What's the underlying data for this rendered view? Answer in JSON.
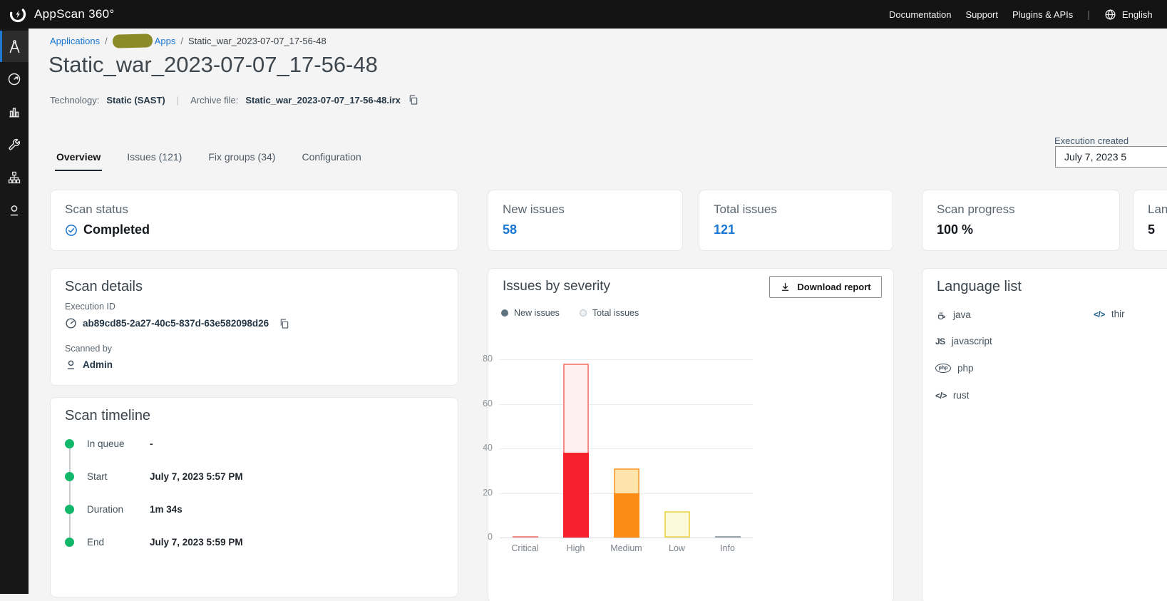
{
  "header": {
    "brand": "AppScan 360°",
    "nav": [
      "Documentation",
      "Support",
      "Plugins & APIs"
    ],
    "divider": "|",
    "language": "English"
  },
  "sidebar": {
    "items": [
      {
        "id": "applications",
        "icon": "compass-a-icon",
        "active": true
      },
      {
        "id": "scans",
        "icon": "gauge-icon",
        "active": false
      },
      {
        "id": "reports",
        "icon": "bar-chart-icon",
        "active": false
      },
      {
        "id": "tools",
        "icon": "wrench-icon",
        "active": false
      },
      {
        "id": "topology",
        "icon": "hierarchy-icon",
        "active": false
      },
      {
        "id": "user",
        "icon": "person-icon",
        "active": false
      }
    ]
  },
  "breadcrumb": {
    "root": "Applications",
    "separator": "/",
    "parent_suffix": "Apps",
    "current": "Static_war_2023-07-07_17-56-48"
  },
  "page": {
    "title": "Static_war_2023-07-07_17-56-48",
    "technology_label": "Technology:",
    "technology_value": "Static (SAST)",
    "divider": "|",
    "archive_label": "Archive file:",
    "archive_value": "Static_war_2023-07-07_17-56-48.irx"
  },
  "tabs": [
    {
      "label": "Overview",
      "active": true
    },
    {
      "label": "Issues (121)",
      "active": false
    },
    {
      "label": "Fix groups (34)",
      "active": false
    },
    {
      "label": "Configuration",
      "active": false
    }
  ],
  "execution_created": {
    "label": "Execution created",
    "value": "July 7, 2023 5"
  },
  "summary_cards": {
    "scan_status": {
      "label": "Scan status",
      "value": "Completed"
    },
    "new_issues": {
      "label": "New issues",
      "value": "58"
    },
    "total_issues": {
      "label": "Total issues",
      "value": "121"
    },
    "scan_progress": {
      "label": "Scan progress",
      "value": "100 %"
    },
    "languages": {
      "label": "Languages",
      "value": "5"
    }
  },
  "scan_details": {
    "title": "Scan details",
    "execution_id_label": "Execution ID",
    "execution_id": "ab89cd85-2a27-40c5-837d-63e582098d26",
    "scanned_by_label": "Scanned by",
    "scanned_by": "Admin"
  },
  "scan_timeline": {
    "title": "Scan timeline",
    "events": [
      {
        "label": "In queue",
        "value": "-"
      },
      {
        "label": "Start",
        "value": "July 7, 2023 5:57 PM"
      },
      {
        "label": "Duration",
        "value": "1m 34s"
      },
      {
        "label": "End",
        "value": "July 7, 2023 5:59 PM"
      }
    ]
  },
  "issues_by_severity": {
    "title": "Issues by severity",
    "download_button": "Download report",
    "legend": [
      {
        "label": "New issues",
        "dot": "#5f7281",
        "dot_border": "#5f7281"
      },
      {
        "label": "Total issues",
        "dot": "#edf1f3",
        "dot_border": "#b9c3cb"
      }
    ]
  },
  "chart_data": {
    "type": "bar",
    "title": "Issues by severity",
    "categories": [
      "Critical",
      "High",
      "Medium",
      "Low",
      "Info"
    ],
    "series": [
      {
        "name": "New issues",
        "values": [
          0,
          38,
          20,
          0,
          0
        ]
      },
      {
        "name": "Total issues",
        "values": [
          0,
          78,
          31,
          12,
          0
        ]
      }
    ],
    "ylim": [
      0,
      80
    ],
    "yticks": [
      0,
      20,
      40,
      60,
      80
    ],
    "grid": true,
    "legend_position": "top-left",
    "bar_style": "new-solid-overlaid-on-total-outline",
    "category_styles": [
      {
        "solid": "#f5222d",
        "light": "#fdeff0",
        "border": "#f58e88"
      },
      {
        "solid": "#f5222d",
        "light": "#fdeff0",
        "border": "#f58e88"
      },
      {
        "solid": "#fa8c16",
        "light": "#fee3ab",
        "border": "#fbab4a"
      },
      {
        "solid": "#fadb14",
        "light": "#fcf8da",
        "border": "#f0dd67"
      },
      {
        "solid": "#9da7ae",
        "light": "#eceef0",
        "border": "#9da7ae"
      }
    ]
  },
  "language_list": {
    "title": "Language list",
    "items": [
      {
        "icon": "java-icon",
        "label": "java"
      },
      {
        "icon": "js-icon",
        "label": "javascript"
      },
      {
        "icon": "php-icon",
        "label": "php"
      },
      {
        "icon": "code-icon",
        "label": "rust"
      }
    ],
    "right_items": [
      {
        "icon": "code-icon",
        "label": "thir"
      }
    ]
  },
  "icon_glyphs": {
    "js": "JS",
    "code": "</>",
    "php": "php"
  },
  "colors": {
    "accent_blue": "#1976d2",
    "success_green": "#12b76a",
    "header_bg": "#141414",
    "sidebar_active_bar": "#1f78d1",
    "redaction_olive": "#8b8b28"
  }
}
